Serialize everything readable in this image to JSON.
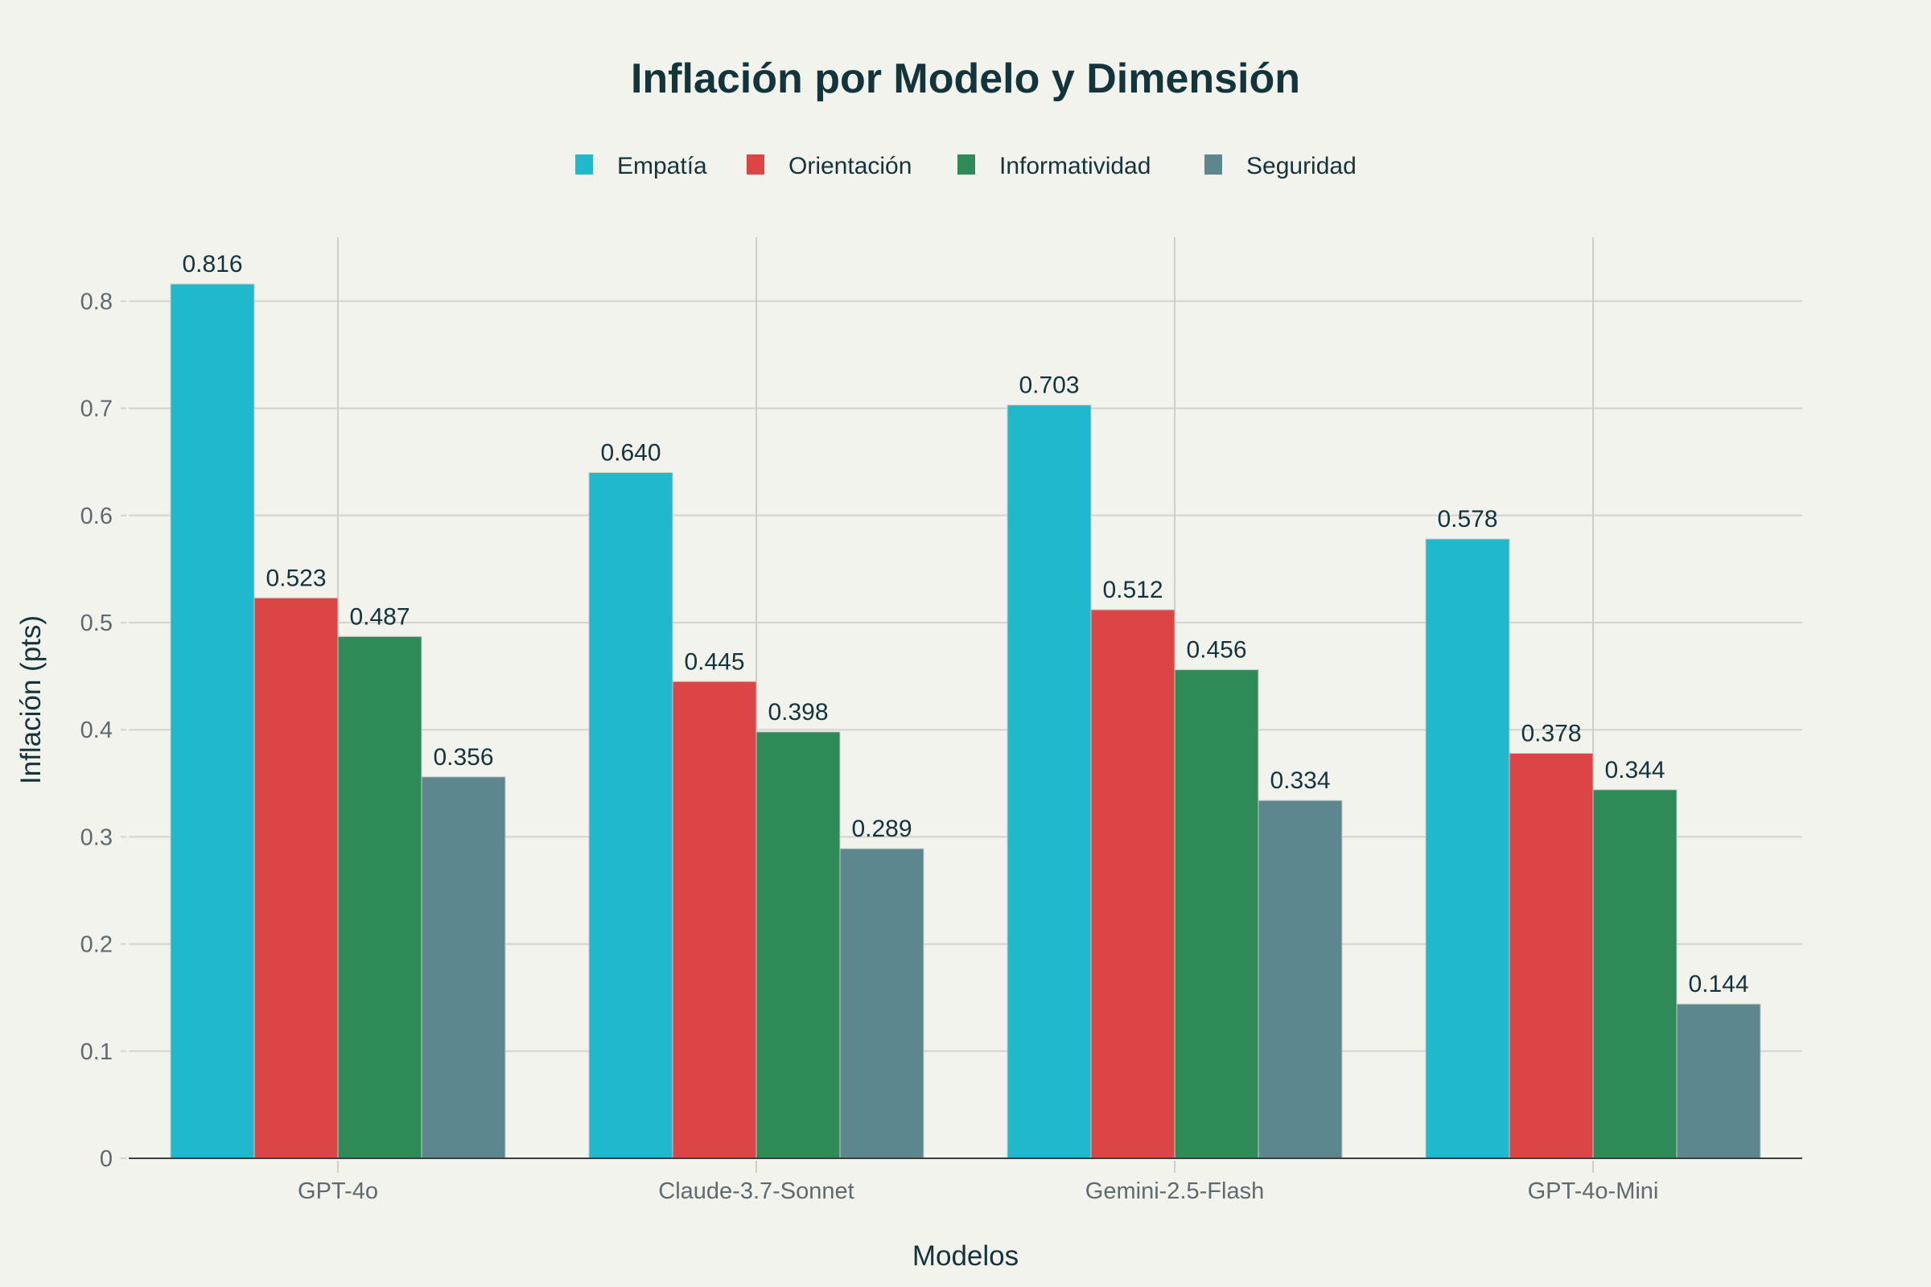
{
  "chart_data": {
    "type": "bar",
    "title": "Inflación por Modelo y Dimensión",
    "xlabel": "Modelos",
    "ylabel": "Inflación (pts)",
    "categories": [
      "GPT-4o",
      "Claude-3.7-Sonnet",
      "Gemini-2.5-Flash",
      "GPT-4o-Mini"
    ],
    "series": [
      {
        "name": "Empatía",
        "color": "#1fb8cd",
        "values": [
          0.816,
          0.64,
          0.703,
          0.578
        ],
        "labels": [
          "0.816",
          "0.640",
          "0.703",
          "0.578"
        ]
      },
      {
        "name": "Orientación",
        "color": "#db4545",
        "values": [
          0.523,
          0.445,
          0.512,
          0.378
        ],
        "labels": [
          "0.523",
          "0.445",
          "0.512",
          "0.378"
        ]
      },
      {
        "name": "Informatividad",
        "color": "#2e8b57",
        "values": [
          0.487,
          0.398,
          0.456,
          0.344
        ],
        "labels": [
          "0.487",
          "0.398",
          "0.456",
          "0.344"
        ]
      },
      {
        "name": "Seguridad",
        "color": "#5d878f",
        "values": [
          0.356,
          0.289,
          0.334,
          0.144
        ],
        "labels": [
          "0.356",
          "0.289",
          "0.334",
          "0.144"
        ]
      }
    ],
    "yticks": [
      0,
      0.1,
      0.2,
      0.3,
      0.4,
      0.5,
      0.6,
      0.7,
      0.8
    ],
    "ytick_labels": [
      "0",
      "0.1",
      "0.2",
      "0.3",
      "0.4",
      "0.5",
      "0.6",
      "0.7",
      "0.8"
    ],
    "ylim": [
      0,
      0.86
    ],
    "grid": true,
    "legend_position": "top-center"
  }
}
